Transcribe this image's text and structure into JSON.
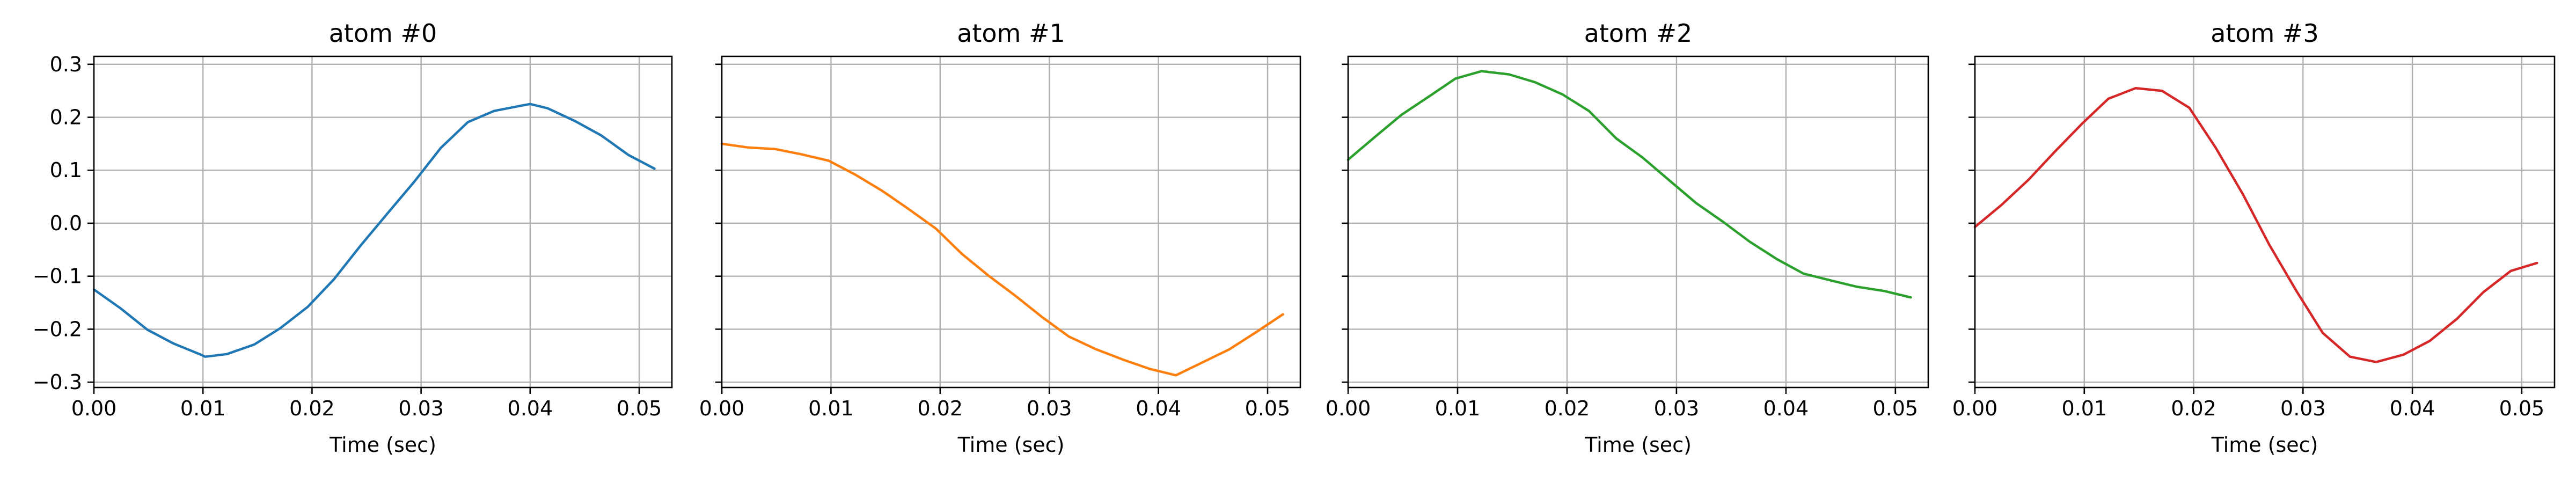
{
  "chart_data": [
    {
      "type": "line",
      "title": "atom #0",
      "xlabel": "Time (sec)",
      "ylabel": "",
      "xlim": [
        0.0,
        0.053
      ],
      "ylim": [
        -0.31,
        0.315
      ],
      "xticks": [
        0.0,
        0.01,
        0.02,
        0.03,
        0.04,
        0.05
      ],
      "xtick_labels": [
        "0.00",
        "0.01",
        "0.02",
        "0.03",
        "0.04",
        "0.05"
      ],
      "yticks": [
        -0.3,
        -0.2,
        -0.1,
        0.0,
        0.1,
        0.2,
        0.3
      ],
      "ytick_labels": [
        "−0.3",
        "−0.2",
        "−0.1",
        "0.0",
        "0.1",
        "0.2",
        "0.3"
      ],
      "grid": true,
      "color": "#1f77b4",
      "x": [
        0.0,
        0.0024,
        0.0049,
        0.0073,
        0.0098,
        0.0102,
        0.0122,
        0.0147,
        0.0171,
        0.0196,
        0.022,
        0.0245,
        0.0269,
        0.0294,
        0.0318,
        0.0343,
        0.0367,
        0.0392,
        0.04,
        0.0416,
        0.0441,
        0.0465,
        0.049,
        0.0514
      ],
      "y": [
        -0.125,
        -0.16,
        -0.201,
        -0.227,
        -0.248,
        -0.252,
        -0.247,
        -0.229,
        -0.198,
        -0.158,
        -0.106,
        -0.041,
        0.018,
        0.079,
        0.142,
        0.191,
        0.212,
        0.222,
        0.225,
        0.217,
        0.193,
        0.166,
        0.129,
        0.103
      ]
    },
    {
      "type": "line",
      "title": "atom #1",
      "xlabel": "Time (sec)",
      "ylabel": "",
      "xlim": [
        0.0,
        0.053
      ],
      "ylim": [
        -0.31,
        0.315
      ],
      "xticks": [
        0.0,
        0.01,
        0.02,
        0.03,
        0.04,
        0.05
      ],
      "xtick_labels": [
        "0.00",
        "0.01",
        "0.02",
        "0.03",
        "0.04",
        "0.05"
      ],
      "yticks": [
        -0.3,
        -0.2,
        -0.1,
        0.0,
        0.1,
        0.2,
        0.3
      ],
      "ytick_labels": [
        "−0.3",
        "−0.2",
        "−0.1",
        "0.0",
        "0.1",
        "0.2",
        "0.3"
      ],
      "grid": true,
      "color": "#ff7f0e",
      "x": [
        0.0,
        0.0024,
        0.0049,
        0.0073,
        0.0098,
        0.0122,
        0.0147,
        0.0171,
        0.0196,
        0.022,
        0.0245,
        0.0269,
        0.0294,
        0.0318,
        0.0343,
        0.0367,
        0.0392,
        0.0416,
        0.0441,
        0.0465,
        0.049,
        0.0514
      ],
      "y": [
        0.15,
        0.143,
        0.14,
        0.13,
        0.118,
        0.092,
        0.061,
        0.027,
        -0.01,
        -0.058,
        -0.1,
        -0.137,
        -0.178,
        -0.214,
        -0.238,
        -0.257,
        -0.275,
        -0.287,
        -0.262,
        -0.238,
        -0.205,
        -0.172
      ]
    },
    {
      "type": "line",
      "title": "atom #2",
      "xlabel": "Time (sec)",
      "ylabel": "",
      "xlim": [
        0.0,
        0.053
      ],
      "ylim": [
        -0.31,
        0.315
      ],
      "xticks": [
        0.0,
        0.01,
        0.02,
        0.03,
        0.04,
        0.05
      ],
      "xtick_labels": [
        "0.00",
        "0.01",
        "0.02",
        "0.03",
        "0.04",
        "0.05"
      ],
      "yticks": [
        -0.3,
        -0.2,
        -0.1,
        0.0,
        0.1,
        0.2,
        0.3
      ],
      "ytick_labels": [
        "−0.3",
        "−0.2",
        "−0.1",
        "0.0",
        "0.1",
        "0.2",
        "0.3"
      ],
      "grid": true,
      "color": "#2ca02c",
      "x": [
        0.0,
        0.0024,
        0.0049,
        0.0073,
        0.0098,
        0.0122,
        0.0147,
        0.0171,
        0.0196,
        0.022,
        0.0245,
        0.0269,
        0.0294,
        0.0318,
        0.0343,
        0.0367,
        0.0392,
        0.0416,
        0.0441,
        0.0465,
        0.049,
        0.0514
      ],
      "y": [
        0.12,
        0.162,
        0.205,
        0.238,
        0.273,
        0.287,
        0.281,
        0.266,
        0.243,
        0.212,
        0.16,
        0.124,
        0.08,
        0.038,
        0.002,
        -0.035,
        -0.068,
        -0.095,
        -0.108,
        -0.12,
        -0.128,
        -0.14
      ]
    },
    {
      "type": "line",
      "title": "atom #3",
      "xlabel": "Time (sec)",
      "ylabel": "",
      "xlim": [
        0.0,
        0.053
      ],
      "ylim": [
        -0.31,
        0.315
      ],
      "xticks": [
        0.0,
        0.01,
        0.02,
        0.03,
        0.04,
        0.05
      ],
      "xtick_labels": [
        "0.00",
        "0.01",
        "0.02",
        "0.03",
        "0.04",
        "0.05"
      ],
      "yticks": [
        -0.3,
        -0.2,
        -0.1,
        0.0,
        0.1,
        0.2,
        0.3
      ],
      "ytick_labels": [
        "−0.3",
        "−0.2",
        "−0.1",
        "0.0",
        "0.1",
        "0.2",
        "0.3"
      ],
      "grid": true,
      "color": "#d62728",
      "x": [
        0.0,
        0.0024,
        0.0049,
        0.0073,
        0.0098,
        0.0122,
        0.0147,
        0.0171,
        0.0196,
        0.022,
        0.0245,
        0.0269,
        0.0294,
        0.0318,
        0.0343,
        0.0367,
        0.0392,
        0.0416,
        0.0441,
        0.0465,
        0.049,
        0.0514
      ],
      "y": [
        -0.007,
        0.034,
        0.082,
        0.135,
        0.188,
        0.235,
        0.255,
        0.25,
        0.218,
        0.143,
        0.055,
        -0.04,
        -0.128,
        -0.207,
        -0.252,
        -0.262,
        -0.248,
        -0.222,
        -0.18,
        -0.13,
        -0.09,
        -0.075
      ]
    }
  ]
}
